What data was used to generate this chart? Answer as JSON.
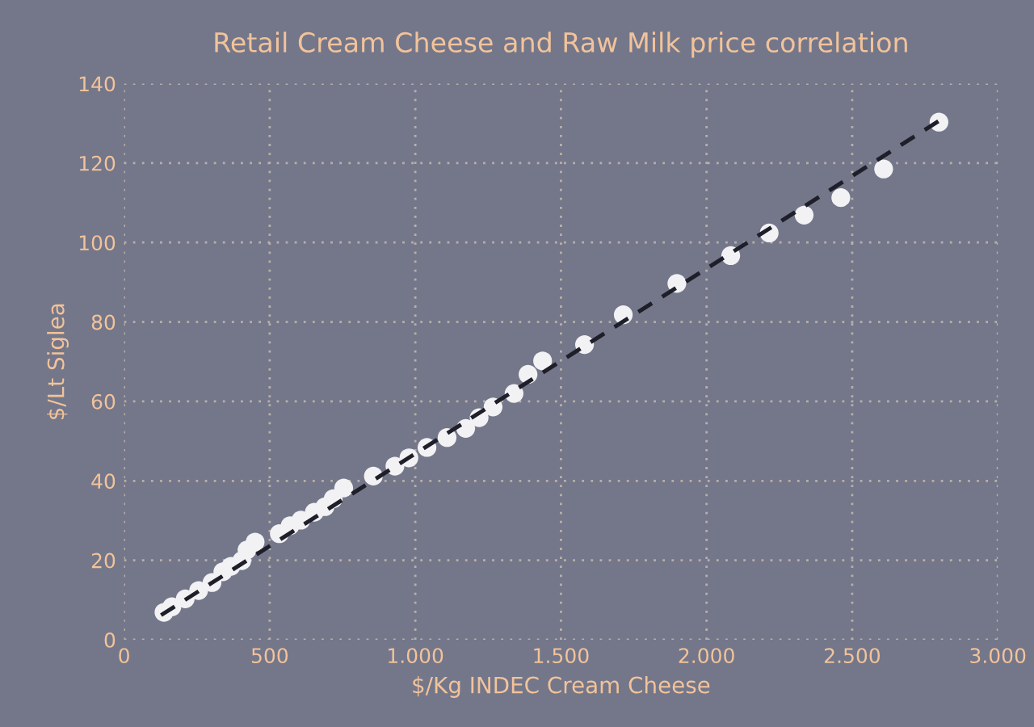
{
  "chart_data": {
    "type": "scatter",
    "title": "Retail Cream Cheese and Raw Milk price correlation",
    "xlabel": "$/Kg INDEC Cream Cheese",
    "ylabel": "$/Lt Siglea",
    "xlim": [
      0,
      3000
    ],
    "xticks": [
      0,
      500,
      {
        "value": 1000,
        "label": "1.000"
      },
      {
        "value": 1500,
        "label": "1.500"
      },
      {
        "value": 2000,
        "label": "2.000"
      },
      {
        "value": 2500,
        "label": "2.500"
      },
      {
        "value": 3000,
        "label": "3.000"
      }
    ],
    "ylim": [
      0,
      140
    ],
    "yticks": [
      0,
      20,
      40,
      60,
      80,
      100,
      120,
      140
    ],
    "grid": true,
    "marker": "circle",
    "series": [
      {
        "color": "#f2f2f4",
        "x": [
          137,
          164,
          210,
          256,
          302,
          339,
          367,
          404,
          422,
          450,
          533,
          570,
          607,
          653,
          690,
          718,
          754,
          856,
          930,
          978,
          1040,
          1109,
          1173,
          1219,
          1267,
          1339,
          1387,
          1437,
          1581,
          1714,
          1898,
          2083,
          2215,
          2335,
          2461,
          2608,
          2798
        ],
        "values": [
          6.9,
          8.3,
          10.3,
          12.4,
          14.4,
          17.1,
          18.5,
          19.9,
          22.6,
          24.6,
          26.7,
          28.7,
          30.1,
          32.1,
          33.5,
          35.5,
          38.2,
          41.2,
          43.7,
          45.8,
          48.4,
          50.9,
          53.2,
          55.9,
          58.6,
          62.0,
          66.8,
          70.2,
          74.3,
          81.8,
          89.7,
          96.7,
          102.4,
          106.9,
          111.3,
          118.5,
          130.3
        ]
      },
      {
        "type": "line",
        "color": "#1e1f29",
        "line_style": "dashed",
        "marker": "none",
        "x": [
          127,
          2806
        ],
        "values": [
          6.2,
          131
        ]
      }
    ]
  }
}
